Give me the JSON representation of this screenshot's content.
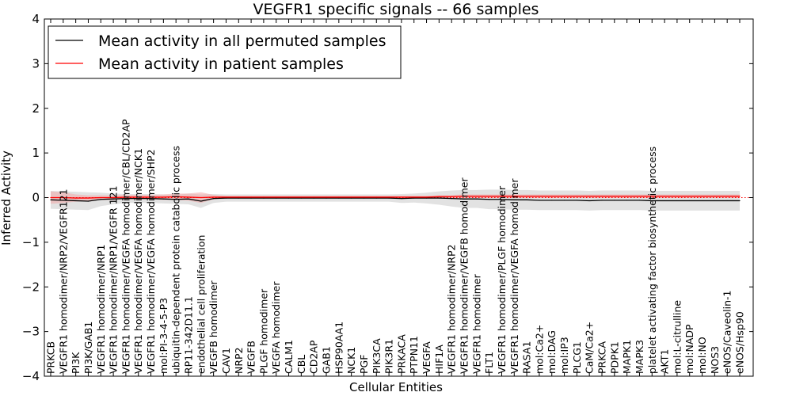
{
  "chart_data": {
    "type": "line",
    "title": "VEGFR1 specific signals -- 66 samples",
    "xlabel": "Cellular Entities",
    "ylabel": "Inferred Activity",
    "ylim": [
      -4,
      4
    ],
    "yticks": [
      "−4",
      "−3",
      "−2",
      "−1",
      "0",
      "1",
      "2",
      "3",
      "4"
    ],
    "grid": false,
    "legend_position": "top-left",
    "categories": [
      "PRKCB",
      "VEGFR1 homodimer/NRP2/VEGFR121",
      "PI3K",
      "PI3K/GAB1",
      "VEGFR1 homodimer/NRP1",
      "VEGFR1 homodimer/NRP1/VEGFR 121",
      "VEGFR1 homodimer/VEGFA homodimer/CBL/CD2AP",
      "VEGFR1 homodimer/VEGFA homodimer/NCK1",
      "VEGFR1 homodimer/VEGFA homodimer/SHP2",
      "mol:PI-3-4-5-P3",
      "ubiquitin-dependent protein catabolic process",
      "RP11-342D11.1",
      "endothelial cell proliferation",
      "VEGFB homodimer",
      "CAV1",
      "NRP2",
      "VEGFB",
      "PLGF homodimer",
      "VEGFA homodimer",
      "CALM1",
      "CBL",
      "CD2AP",
      "GAB1",
      "HSP90AA1",
      "NCK1",
      "PGF",
      "PIK3CA",
      "PIK3R1",
      "PRKACA",
      "PTPN11",
      "VEGFA",
      "HIF1A",
      "VEGFR1 homodimer/NRP2",
      "VEGFR1 homodimer/VEGFB homodimer",
      "VEGFR1 homodimer",
      "FLT1",
      "VEGFR1 homodimer/PLGF homodimer",
      "VEGFR1 homodimer/VEGFA homodimer",
      "RASA1",
      "mol:Ca2+",
      "mol:DAG",
      "mol:IP3",
      "PLCG1",
      "CaM/Ca2+",
      "PRKCA",
      "PDPK1",
      "MAPK1",
      "MAPK3",
      "platelet activating factor biosynthetic process",
      "AKT1",
      "mol:L-citrulline",
      "mol:NADP",
      "mol:NO",
      "NOS3",
      "eNOS/Caveolin-1",
      "eNOS/Hsp90"
    ],
    "series": [
      {
        "name": "Mean activity in all permuted samples",
        "color": "#000000",
        "values": [
          -0.05,
          -0.06,
          -0.07,
          -0.08,
          -0.04,
          -0.03,
          -0.02,
          -0.02,
          -0.02,
          -0.03,
          -0.04,
          -0.03,
          -0.08,
          -0.02,
          -0.01,
          -0.01,
          -0.01,
          -0.01,
          -0.01,
          -0.01,
          -0.01,
          -0.01,
          -0.01,
          -0.01,
          -0.01,
          -0.01,
          -0.01,
          -0.01,
          -0.02,
          -0.01,
          -0.01,
          -0.01,
          -0.02,
          -0.03,
          -0.03,
          -0.04,
          -0.04,
          -0.05,
          -0.05,
          -0.06,
          -0.06,
          -0.06,
          -0.06,
          -0.07,
          -0.06,
          -0.06,
          -0.06,
          -0.06,
          -0.07,
          -0.07,
          -0.07,
          -0.07,
          -0.07,
          -0.07,
          -0.07,
          -0.07
        ],
        "band": [
          0.2,
          0.2,
          0.2,
          0.2,
          0.15,
          0.12,
          0.1,
          0.1,
          0.1,
          0.1,
          0.1,
          0.12,
          0.15,
          0.1,
          0.08,
          0.08,
          0.08,
          0.08,
          0.08,
          0.08,
          0.08,
          0.08,
          0.08,
          0.08,
          0.08,
          0.08,
          0.08,
          0.08,
          0.1,
          0.1,
          0.12,
          0.15,
          0.18,
          0.2,
          0.2,
          0.22,
          0.22,
          0.22,
          0.22,
          0.22,
          0.22,
          0.22,
          0.22,
          0.22,
          0.22,
          0.22,
          0.22,
          0.22,
          0.22,
          0.22,
          0.22,
          0.22,
          0.22,
          0.22,
          0.22,
          0.22
        ]
      },
      {
        "name": "Mean activity in patient samples",
        "color": "#ff0000",
        "values": [
          0.0,
          0.0,
          -0.01,
          -0.01,
          0.0,
          0.0,
          0.01,
          0.01,
          0.01,
          0.01,
          0.02,
          0.01,
          0.0,
          0.01,
          0.01,
          0.01,
          0.01,
          0.01,
          0.01,
          0.01,
          0.01,
          0.01,
          0.01,
          0.01,
          0.01,
          0.01,
          0.01,
          0.01,
          0.01,
          0.01,
          0.01,
          0.02,
          0.02,
          0.03,
          0.03,
          0.03,
          0.03,
          0.03,
          0.03,
          0.03,
          0.03,
          0.03,
          0.03,
          0.03,
          0.03,
          0.03,
          0.03,
          0.03,
          0.03,
          0.03,
          0.03,
          0.03,
          0.03,
          0.03,
          0.03,
          0.03
        ],
        "band": [
          0.14,
          0.12,
          0.08,
          0.06,
          0.05,
          0.05,
          0.05,
          0.05,
          0.05,
          0.06,
          0.07,
          0.08,
          0.12,
          0.05,
          0.03,
          0.03,
          0.03,
          0.03,
          0.03,
          0.03,
          0.03,
          0.03,
          0.03,
          0.03,
          0.03,
          0.03,
          0.03,
          0.03,
          0.03,
          0.03,
          0.03,
          0.04,
          0.04,
          0.04,
          0.04,
          0.04,
          0.04,
          0.04,
          0.04,
          0.04,
          0.04,
          0.04,
          0.04,
          0.04,
          0.04,
          0.04,
          0.04,
          0.04,
          0.04,
          0.04,
          0.04,
          0.04,
          0.04,
          0.04,
          0.04,
          0.04
        ]
      }
    ],
    "reference_line": {
      "y": 0,
      "color": "#ff0000",
      "style": "dotted"
    }
  }
}
